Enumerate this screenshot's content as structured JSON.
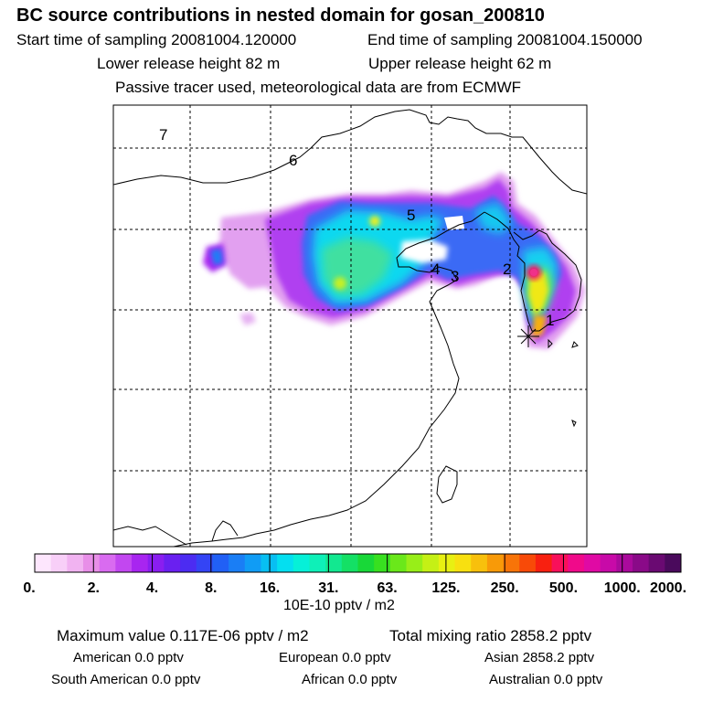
{
  "header": {
    "title": "BC  source contributions in nested domain for gosan_200810",
    "start_time": "Start time of sampling 20081004.120000",
    "end_time": "End time of sampling 20081004.150000",
    "lower_release": "Lower release height   82 m",
    "upper_release": "Upper release height   62 m",
    "tracer_note": "Passive tracer used, meteorological data are from ECMWF"
  },
  "map": {
    "region_labels": [
      "7",
      "6",
      "5",
      "4",
      "3",
      "2",
      "1"
    ],
    "receptor_marker": "asterisk-marker"
  },
  "colorbar": {
    "tick_labels": [
      "0.",
      "2.",
      "4.",
      "8.",
      "16.",
      "31.",
      "63.",
      "125.",
      "250.",
      "500.",
      "1000.",
      "2000."
    ],
    "unit": "10E-10 pptv / m2",
    "colors": [
      "#fde6fd",
      "#f8cff8",
      "#f1b3f1",
      "#e88fe8",
      "#d96bf0",
      "#c247f0",
      "#a825f0",
      "#8a1ef0",
      "#6a20f0",
      "#4c2cf2",
      "#3444f5",
      "#2160f5",
      "#1a7ef5",
      "#109cf5",
      "#08bff2",
      "#04dff0",
      "#06f0d8",
      "#0ef0b8",
      "#12e890",
      "#14e065",
      "#18d838",
      "#38e020",
      "#6ae81a",
      "#98ee18",
      "#c5f015",
      "#e8f012",
      "#f8e010",
      "#f8c00c",
      "#f89a08",
      "#f87408",
      "#f84a08",
      "#f82010",
      "#f8105a",
      "#f00a8a",
      "#e00aa4",
      "#c80aa8",
      "#aa0a9c",
      "#8a0a88",
      "#6a0a72",
      "#4a0a5c"
    ]
  },
  "footer": {
    "max_value": "Maximum value  0.117E-06 pptv / m2",
    "total_mixing": "Total mixing ratio      2858.2 pptv",
    "american": "American        0.0 pptv",
    "european": "European        0.0 pptv",
    "asian": "Asian      2858.2 pptv",
    "south_american": "South American        0.0 pptv",
    "african": "African        0.0 pptv",
    "australian": "Australian        0.0 pptv"
  }
}
